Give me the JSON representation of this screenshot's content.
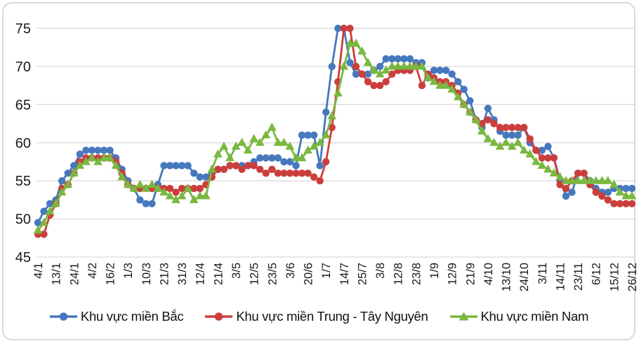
{
  "chart_data": {
    "type": "line",
    "title": "",
    "xlabel": "",
    "ylabel": "",
    "ylim": [
      45,
      75
    ],
    "yticks": [
      45,
      50,
      55,
      60,
      65,
      70,
      75
    ],
    "grid": true,
    "grid_color": "#d9d9d9",
    "text_color": "#1a1a1a",
    "legend_position": "bottom",
    "ticks_every": 3,
    "tick_labels": [
      "4/1",
      "13/1",
      "24/1",
      "4/2",
      "16/2",
      "1/3",
      "10/3",
      "21/3",
      "31/3",
      "12/4",
      "21/4",
      "3/5",
      "12/5",
      "23/5",
      "3/6",
      "20/6",
      "1/7",
      "14/7",
      "25/7",
      "3/8",
      "12/8",
      "23/8",
      "1/9",
      "12/9",
      "21/9",
      "4/10",
      "13/10",
      "24/10",
      "3/11",
      "14/11",
      "23/11",
      "6/12",
      "15/12",
      "26/12"
    ],
    "series": [
      {
        "name": "Khu vực miền Bắc",
        "color": "#4678be",
        "marker": "circle",
        "values": [
          49.5,
          51,
          52,
          52.5,
          55,
          56,
          57,
          58.5,
          59,
          59,
          59,
          59,
          59,
          58,
          56.5,
          55,
          54,
          52.5,
          52,
          52,
          54.5,
          57,
          57,
          57,
          57,
          57,
          56,
          55.5,
          55.5,
          56,
          56.5,
          56.5,
          57,
          57,
          57,
          57,
          57.5,
          58,
          58,
          58,
          58,
          57.5,
          57.5,
          57,
          61,
          61,
          61,
          57,
          64,
          70,
          75,
          75,
          70.5,
          69,
          69,
          69,
          69.5,
          70,
          71,
          71,
          71,
          71,
          71,
          70.5,
          70.5,
          68.5,
          69.5,
          69.5,
          69.5,
          69,
          68,
          67,
          65.5,
          63,
          62,
          64.5,
          63,
          61.5,
          61,
          61,
          61,
          62,
          60,
          59,
          59,
          59.5,
          58,
          55,
          53,
          53.5,
          56,
          56,
          55,
          54,
          53.5,
          53.5,
          54,
          54,
          54,
          54
        ]
      },
      {
        "name": "Khu vực miền Trung - Tây Nguyên",
        "color": "#cb3e3c",
        "marker": "circle",
        "values": [
          48,
          48,
          50.5,
          52,
          54,
          54.5,
          56,
          57.5,
          58,
          58,
          58,
          58,
          58,
          57.5,
          56,
          54.5,
          54,
          54,
          54,
          54,
          54,
          54,
          54,
          53.5,
          54,
          54,
          54,
          54,
          54.5,
          55.5,
          56.5,
          56.5,
          57,
          57,
          56.5,
          57,
          57,
          56.5,
          56,
          56.5,
          56,
          56,
          56,
          56,
          56,
          56,
          55.5,
          55,
          57.5,
          62,
          68,
          75,
          75,
          70,
          69,
          68,
          67.5,
          67.5,
          68,
          69,
          69.5,
          69.5,
          69.5,
          70,
          67.5,
          69,
          68.5,
          68,
          68,
          67.5,
          66.5,
          65,
          64,
          63,
          62.5,
          63,
          62.5,
          62,
          62,
          62,
          62,
          62,
          60.5,
          59,
          58,
          58,
          58,
          54.5,
          54,
          55,
          56,
          56,
          54.5,
          53.5,
          53,
          52.5,
          52,
          52,
          52,
          52
        ]
      },
      {
        "name": "Khu vực miền Nam",
        "color": "#79b83f",
        "marker": "triangle",
        "values": [
          48.5,
          49.5,
          51,
          52,
          53.5,
          54.5,
          56,
          57,
          57.5,
          58,
          57.5,
          58,
          58,
          57,
          55.5,
          54.5,
          54,
          54.5,
          54,
          54.5,
          54,
          53.5,
          53,
          52.5,
          53,
          54,
          52.5,
          53,
          53,
          56.5,
          58.5,
          59.5,
          58,
          59.5,
          60,
          59,
          60.5,
          60,
          61,
          62,
          60,
          60,
          59.5,
          58,
          58,
          59,
          59.5,
          60,
          61,
          63.5,
          66.5,
          70,
          73,
          73,
          72,
          70.5,
          69.5,
          69,
          69.5,
          70,
          70,
          70,
          70,
          70,
          70,
          68.5,
          68,
          67.5,
          67.5,
          67,
          66,
          65,
          64,
          63,
          61.5,
          60.5,
          60,
          59.5,
          60,
          59.5,
          60,
          59,
          58.5,
          57.5,
          57,
          56.5,
          56,
          55.5,
          55,
          55,
          55,
          55,
          55,
          55,
          55,
          55,
          54.5,
          53.5,
          53,
          53
        ]
      }
    ]
  },
  "legend": {
    "items": [
      {
        "label": "Khu vực miền Bắc"
      },
      {
        "label": "Khu vực miền Trung - Tây Nguyên"
      },
      {
        "label": "Khu vực miền Nam"
      }
    ]
  }
}
